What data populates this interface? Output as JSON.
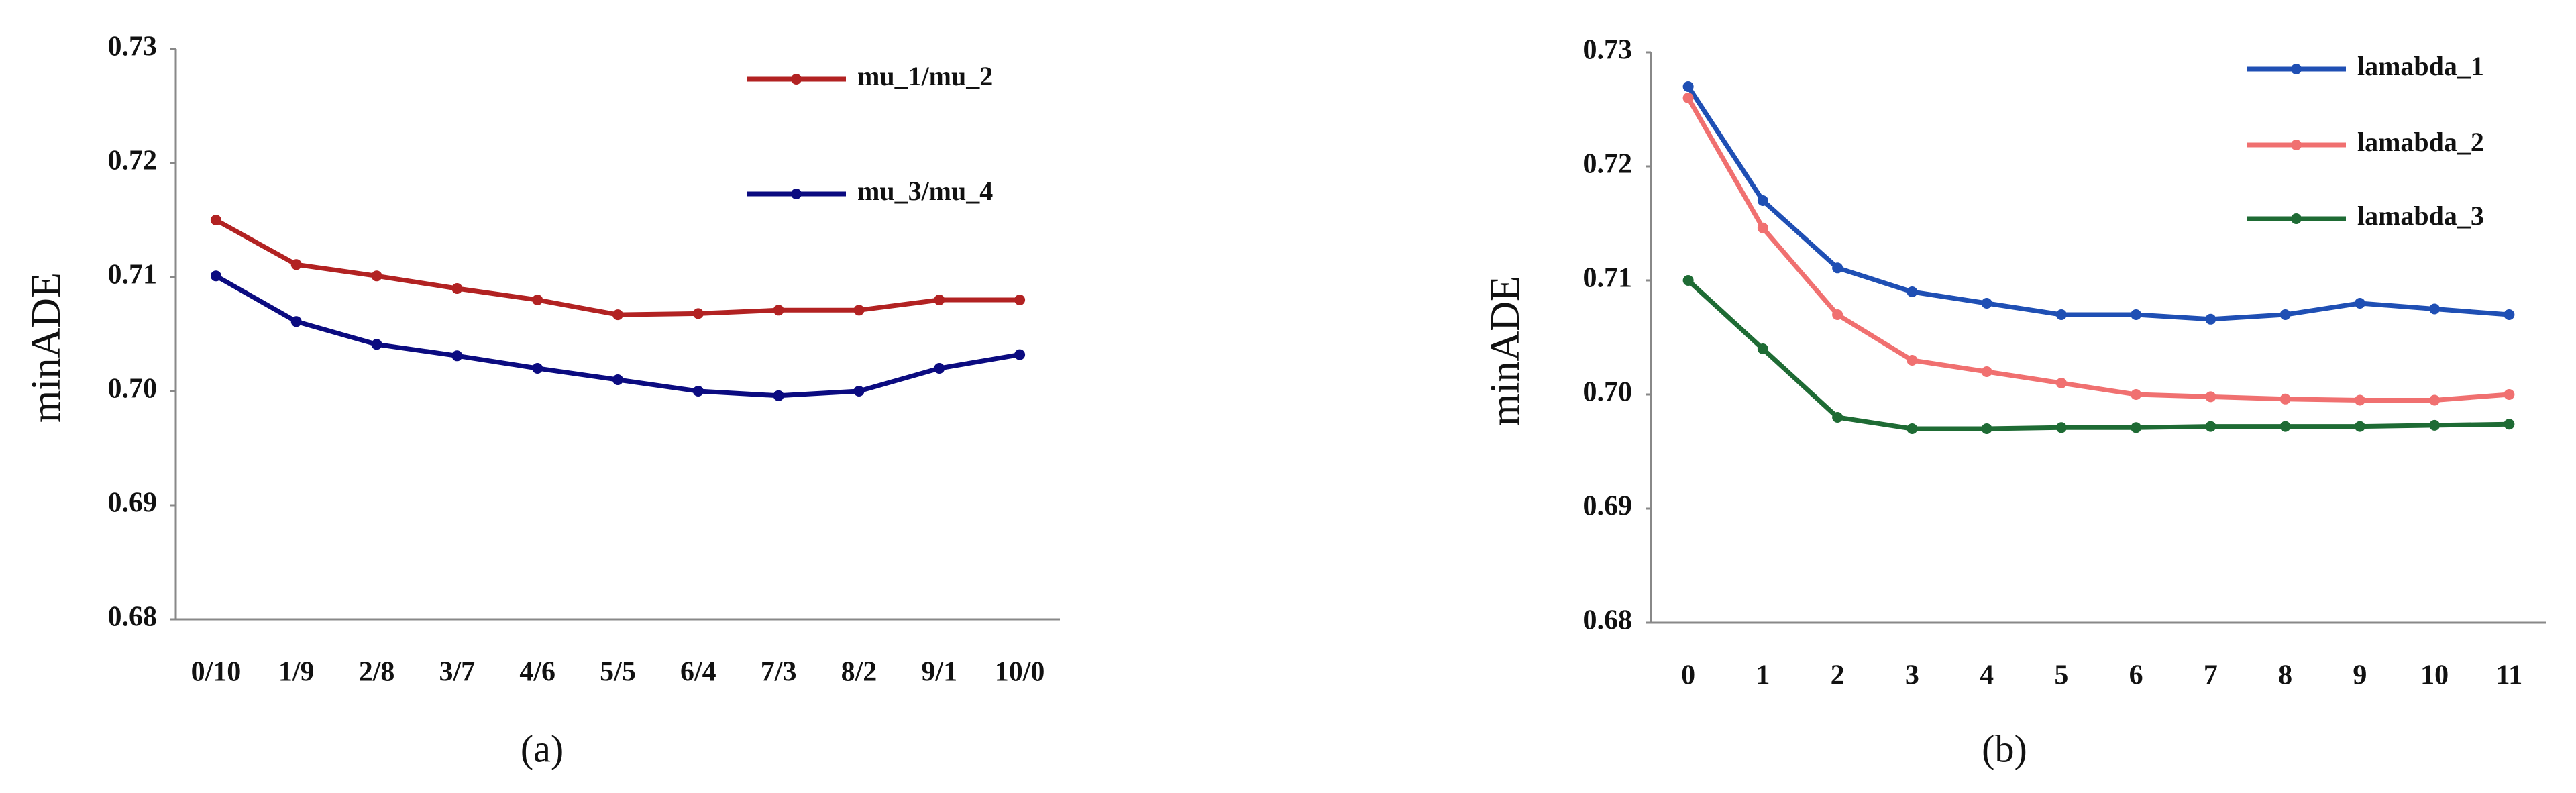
{
  "chart_data": [
    {
      "type": "line",
      "caption": "(a)",
      "y_label": "minADE",
      "categories": [
        "0/10",
        "1/9",
        "2/8",
        "3/7",
        "4/6",
        "5/5",
        "6/4",
        "7/3",
        "8/2",
        "9/1",
        "10/0"
      ],
      "ylim": [
        0.68,
        0.73
      ],
      "yticks": [
        0.68,
        0.69,
        {
          "value": 0.7,
          "label": "0.70"
        },
        0.71,
        0.72,
        0.73
      ],
      "series": [
        {
          "name": "mu_1/mu_2",
          "color": "#b22222",
          "values": [
            0.715,
            0.7111,
            0.7101,
            0.709,
            0.708,
            0.7067,
            0.7068,
            0.7071,
            0.7071,
            0.708,
            0.708
          ]
        },
        {
          "name": "mu_3/mu_4",
          "color": "#0b0b80",
          "values": [
            0.7101,
            0.7061,
            0.7041,
            0.7031,
            0.702,
            0.701,
            0.7,
            0.6996,
            0.7,
            0.702,
            0.7032
          ]
        }
      ]
    },
    {
      "type": "line",
      "caption": "(b)",
      "y_label": "minADE",
      "categories": [
        "0",
        "1",
        "2",
        "3",
        "4",
        "5",
        "6",
        "7",
        "8",
        "9",
        "10",
        "11"
      ],
      "ylim": [
        0.68,
        0.73
      ],
      "yticks": [
        0.68,
        0.69,
        {
          "value": 0.7,
          "label": "0.70"
        },
        0.71,
        0.72,
        0.73
      ],
      "series": [
        {
          "name": "lamabda_1",
          "color": "#1f4fb4",
          "values": [
            0.727,
            0.717,
            0.7111,
            0.709,
            0.708,
            0.707,
            0.707,
            0.7066,
            0.707,
            0.708,
            0.7075,
            0.707
          ]
        },
        {
          "name": "lamabda_2",
          "color": "#f07070",
          "values": [
            0.726,
            0.7146,
            0.707,
            0.703,
            0.702,
            0.701,
            0.7,
            0.6998,
            0.6996,
            0.6995,
            0.6995,
            0.7
          ]
        },
        {
          "name": "lamabda_3",
          "color": "#1e6b34",
          "values": [
            0.71,
            0.704,
            0.698,
            0.697,
            0.697,
            0.6971,
            0.6971,
            0.6972,
            0.6972,
            0.6972,
            0.6973,
            0.6974
          ]
        }
      ]
    }
  ]
}
